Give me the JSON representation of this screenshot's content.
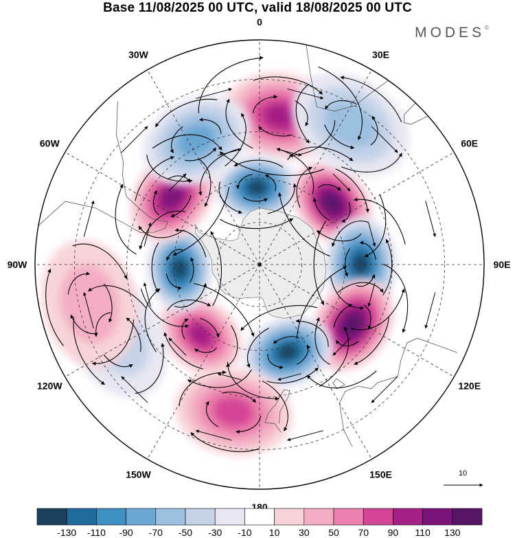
{
  "title": "Base 11/08/2025 00 UTC, valid 18/08/2025 00 UTC",
  "brand": "MODES",
  "brand_mark": "©",
  "projection": "south-polar-stereographic",
  "longitude_labels": [
    {
      "id": "lon-0",
      "text": "0",
      "lon": 0
    },
    {
      "id": "lon-30e",
      "text": "30E",
      "lon": 30
    },
    {
      "id": "lon-60e",
      "text": "60E",
      "lon": 60
    },
    {
      "id": "lon-90e",
      "text": "90E",
      "lon": 90
    },
    {
      "id": "lon-120e",
      "text": "120E",
      "lon": 120
    },
    {
      "id": "lon-150e",
      "text": "150E",
      "lon": 150
    },
    {
      "id": "lon-180",
      "text": "180",
      "lon": 180
    },
    {
      "id": "lon-150w",
      "text": "150W",
      "lon": -150
    },
    {
      "id": "lon-120w",
      "text": "120W",
      "lon": -120
    },
    {
      "id": "lon-90w",
      "text": "90W",
      "lon": -90
    },
    {
      "id": "lon-60w",
      "text": "60W",
      "lon": -60
    },
    {
      "id": "lon-30w",
      "text": "30W",
      "lon": -30
    }
  ],
  "anomalies": [
    {
      "name": "positive-anomaly-0",
      "sign": "+",
      "peak": 90,
      "lon": 8,
      "lat": -40
    },
    {
      "name": "negative-anomaly-0",
      "sign": "-",
      "peak": -130,
      "lon": -2,
      "lat": -63
    },
    {
      "name": "positive-anomaly-55e",
      "sign": "+",
      "peak": 130,
      "lon": 50,
      "lat": -57
    },
    {
      "name": "negative-anomaly-90e",
      "sign": "-",
      "peak": -130,
      "lon": 90,
      "lat": -55
    },
    {
      "name": "positive-anomaly-120e",
      "sign": "+",
      "peak": 130,
      "lon": 123,
      "lat": -52
    },
    {
      "name": "negative-anomaly-155e",
      "sign": "-",
      "peak": -130,
      "lon": 162,
      "lat": -58
    },
    {
      "name": "positive-anomaly-170w",
      "sign": "+",
      "peak": 70,
      "lon": -170,
      "lat": -40
    },
    {
      "name": "positive-anomaly-140w",
      "sign": "+",
      "peak": 90,
      "lon": -140,
      "lat": -58
    },
    {
      "name": "negative-anomaly-115w",
      "sign": "-",
      "peak": -30,
      "lon": -118,
      "lat": -37
    },
    {
      "name": "positive-anomaly-105w",
      "sign": "+",
      "peak": 30,
      "lon": -103,
      "lat": -33
    },
    {
      "name": "negative-anomaly-90w",
      "sign": "-",
      "peak": -130,
      "lon": -93,
      "lat": -62
    },
    {
      "name": "positive-anomaly-55w",
      "sign": "+",
      "peak": 110,
      "lon": -52,
      "lat": -52
    },
    {
      "name": "negative-anomaly-25w",
      "sign": "-",
      "peak": -70,
      "lon": -27,
      "lat": -43
    },
    {
      "name": "negative-anomaly-30e",
      "sign": "-",
      "peak": -50,
      "lon": 33,
      "lat": -35
    }
  ],
  "colorbar": {
    "colors": [
      "#1c3f5c",
      "#1f6a9a",
      "#3f8ec4",
      "#6ba5d2",
      "#9cbfe0",
      "#c3d2e8",
      "#e7e6f2",
      "#ffffff",
      "#f8d3da",
      "#f3adc3",
      "#ec7fac",
      "#d54596",
      "#a51f84",
      "#7a1478",
      "#561467"
    ],
    "labels": [
      "-130",
      "-110",
      "-90",
      "-70",
      "-50",
      "-30",
      "-10",
      "10",
      "30",
      "50",
      "70",
      "90",
      "110",
      "130"
    ]
  },
  "reference_vector": {
    "label": "10"
  }
}
